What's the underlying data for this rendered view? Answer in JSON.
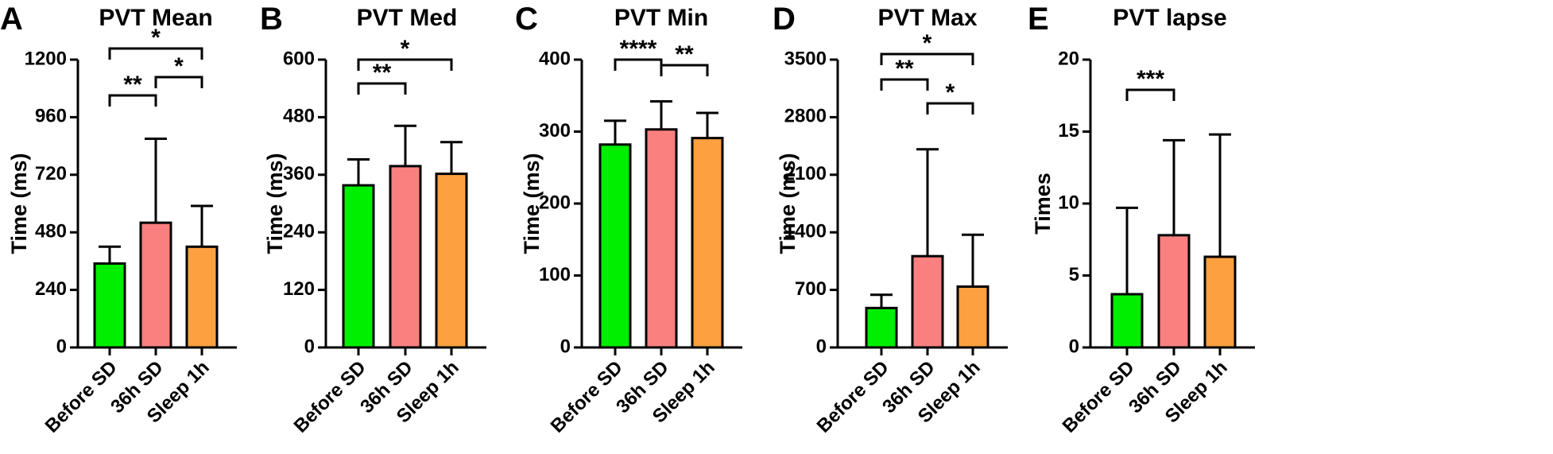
{
  "chart_data": [
    {
      "panel": "A",
      "type": "bar",
      "title": "PVT Mean",
      "ylabel": "Time (ms)",
      "xlabel": "",
      "ylim": [
        0,
        1200
      ],
      "yticks": [
        0,
        240,
        480,
        720,
        960,
        1200
      ],
      "categories": [
        "Before SD",
        "36h SD",
        "Sleep 1h"
      ],
      "values": [
        350,
        520,
        420
      ],
      "error_upper": [
        420,
        870,
        590
      ],
      "colors": [
        "#00ee00",
        "#fa8080",
        "#fca040"
      ],
      "significance": [
        {
          "from": 0,
          "to": 1,
          "label": "**"
        },
        {
          "from": 1,
          "to": 2,
          "label": "*"
        },
        {
          "from": 0,
          "to": 2,
          "label": "*"
        }
      ]
    },
    {
      "panel": "B",
      "type": "bar",
      "title": "PVT Med",
      "ylabel": "Time (ms)",
      "xlabel": "",
      "ylim": [
        0,
        600
      ],
      "yticks": [
        0,
        120,
        240,
        360,
        480,
        600
      ],
      "categories": [
        "Before SD",
        "36h SD",
        "Sleep 1h"
      ],
      "values": [
        338,
        378,
        362
      ],
      "error_upper": [
        392,
        462,
        428
      ],
      "colors": [
        "#00ee00",
        "#fa8080",
        "#fca040"
      ],
      "significance": [
        {
          "from": 0,
          "to": 1,
          "label": "**"
        },
        {
          "from": 0,
          "to": 2,
          "label": "*"
        }
      ]
    },
    {
      "panel": "C",
      "type": "bar",
      "title": "PVT Min",
      "ylabel": "Time (ms)",
      "xlabel": "",
      "ylim": [
        0,
        400
      ],
      "yticks": [
        0,
        100,
        200,
        300,
        400
      ],
      "categories": [
        "Before SD",
        "36h SD",
        "Sleep 1h"
      ],
      "values": [
        282,
        303,
        291
      ],
      "error_upper": [
        315,
        342,
        326
      ],
      "colors": [
        "#00ee00",
        "#fa8080",
        "#fca040"
      ],
      "significance": [
        {
          "from": 0,
          "to": 1,
          "label": "****"
        },
        {
          "from": 1,
          "to": 2,
          "label": "**"
        }
      ]
    },
    {
      "panel": "D",
      "type": "bar",
      "title": "PVT Max",
      "ylabel": "Time (ms)",
      "xlabel": "",
      "ylim": [
        0,
        3500
      ],
      "yticks": [
        0,
        700,
        1400,
        2100,
        2800,
        3500
      ],
      "categories": [
        "Before SD",
        "36h SD",
        "Sleep 1h"
      ],
      "values": [
        480,
        1110,
        740
      ],
      "error_upper": [
        640,
        2410,
        1370
      ],
      "colors": [
        "#00ee00",
        "#fa8080",
        "#fca040"
      ],
      "significance": [
        {
          "from": 0,
          "to": 1,
          "label": "**"
        },
        {
          "from": 1,
          "to": 2,
          "label": "*"
        },
        {
          "from": 0,
          "to": 2,
          "label": "*"
        }
      ]
    },
    {
      "panel": "E",
      "type": "bar",
      "title": "PVT lapse",
      "ylabel": "Times",
      "xlabel": "",
      "ylim": [
        0,
        20
      ],
      "yticks": [
        0,
        5,
        10,
        15,
        20
      ],
      "categories": [
        "Before SD",
        "36h SD",
        "Sleep 1h"
      ],
      "values": [
        3.7,
        7.8,
        6.3
      ],
      "error_upper": [
        9.7,
        14.4,
        14.8
      ],
      "colors": [
        "#00ee00",
        "#fa8080",
        "#fca040"
      ],
      "significance": [
        {
          "from": 0,
          "to": 1,
          "label": "***"
        }
      ]
    }
  ]
}
